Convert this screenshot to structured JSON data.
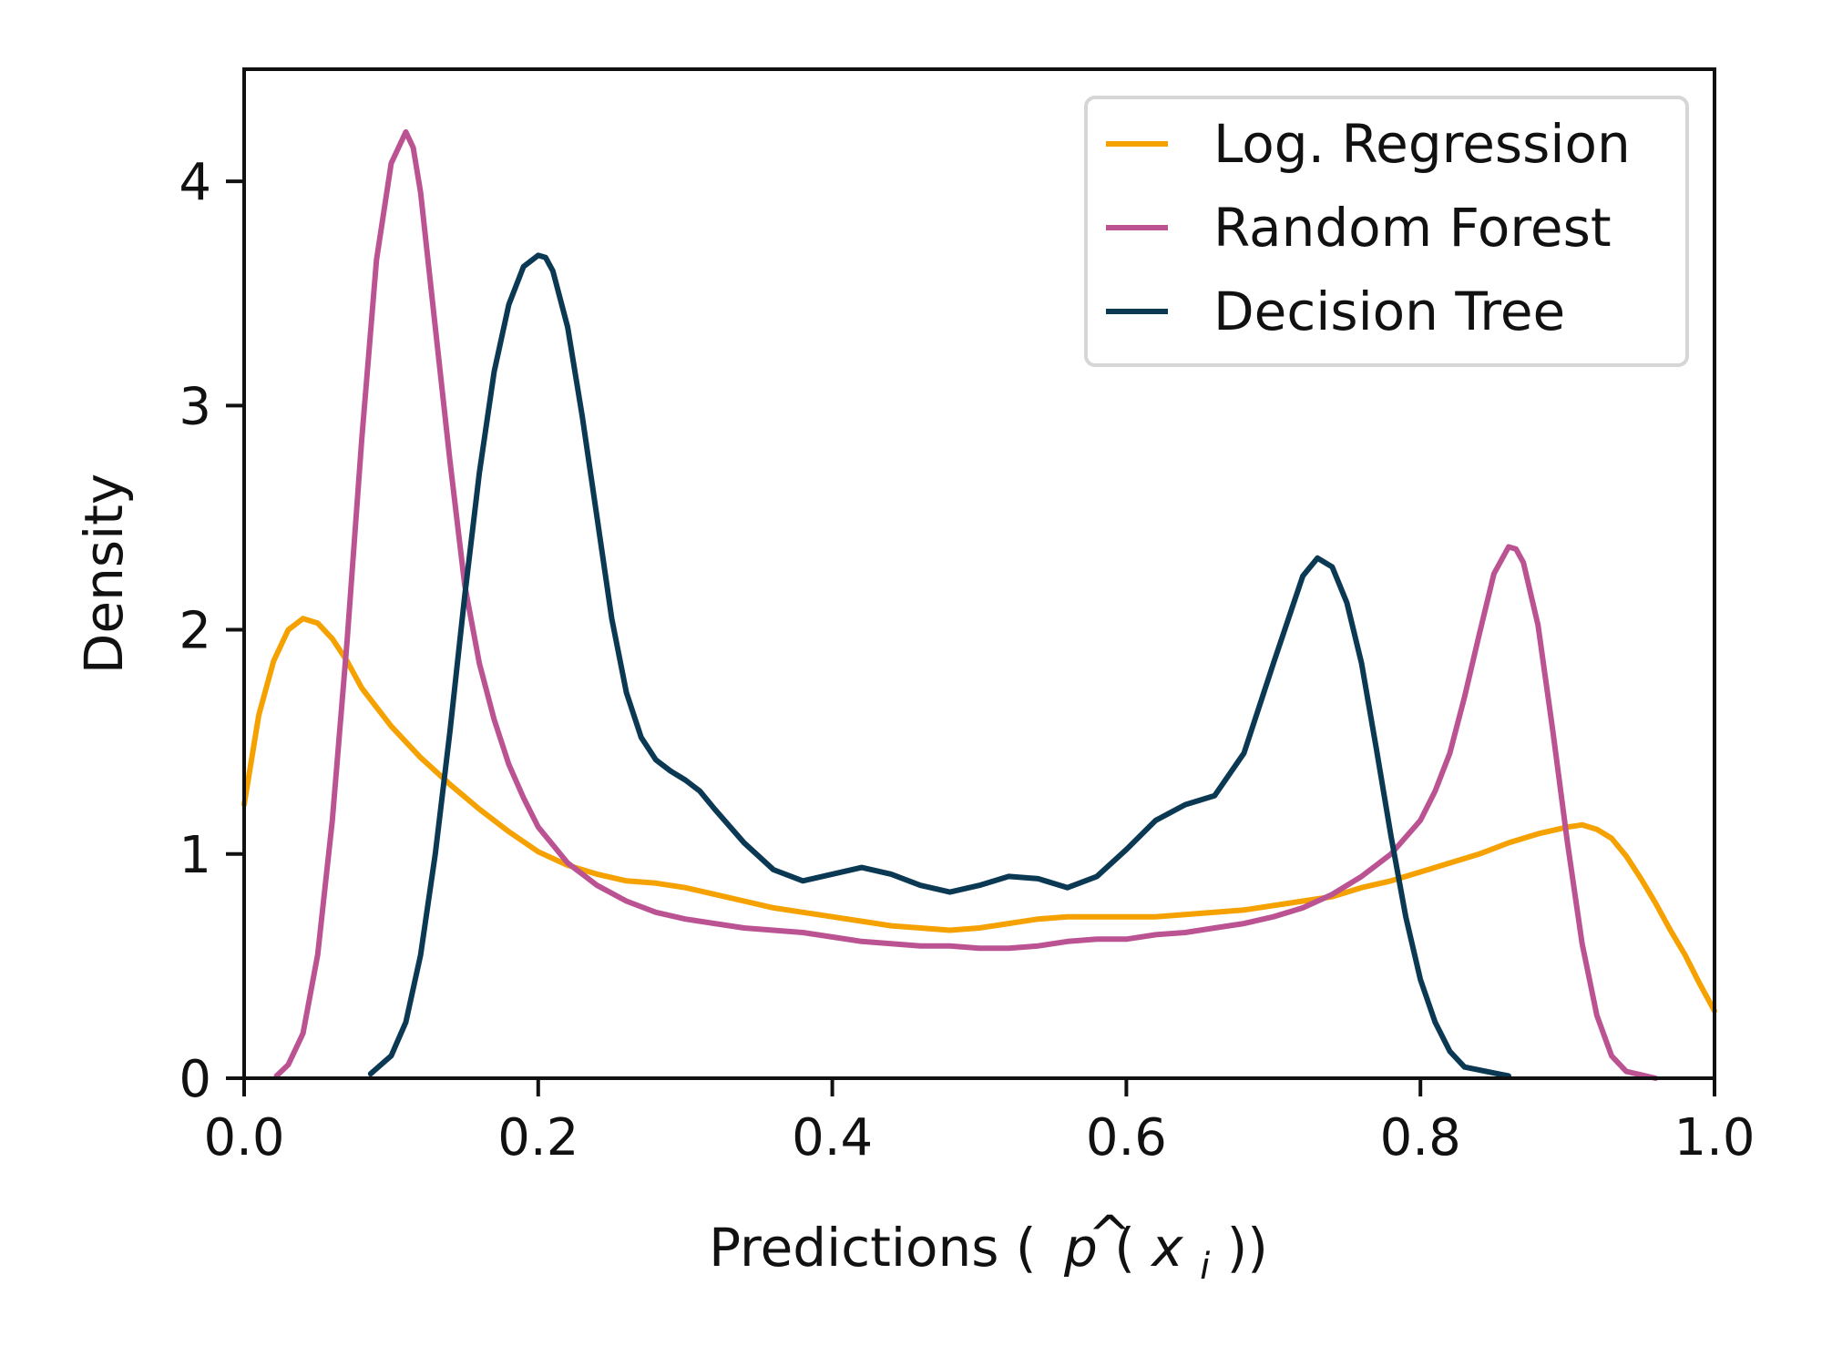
{
  "chart_data": {
    "type": "line",
    "title": "",
    "xlabel": "Predictions ( p̂(x_i) )",
    "xlabel_parts": {
      "prefix": "Predictions (",
      "p": "p",
      "hat": "^",
      "open": "(",
      "x": "x",
      "sub": "i",
      "close": "))"
    },
    "ylabel": "Density",
    "xlim": [
      0.0,
      1.0
    ],
    "ylim": [
      0.0,
      4.5
    ],
    "xticks": [
      0.0,
      0.2,
      0.4,
      0.6,
      0.8,
      1.0
    ],
    "xtick_labels": [
      "0.0",
      "0.2",
      "0.4",
      "0.6",
      "0.8",
      "1.0"
    ],
    "yticks": [
      0,
      1,
      2,
      3,
      4
    ],
    "ytick_labels": [
      "0",
      "1",
      "2",
      "3",
      "4"
    ],
    "grid": false,
    "legend_position": "top-right",
    "series": [
      {
        "name": "Log. Regression",
        "color": "#f5a100",
        "points": [
          [
            0.0,
            1.22
          ],
          [
            0.01,
            1.62
          ],
          [
            0.02,
            1.86
          ],
          [
            0.03,
            2.0
          ],
          [
            0.04,
            2.05
          ],
          [
            0.05,
            2.03
          ],
          [
            0.06,
            1.96
          ],
          [
            0.07,
            1.86
          ],
          [
            0.08,
            1.74
          ],
          [
            0.1,
            1.57
          ],
          [
            0.12,
            1.43
          ],
          [
            0.14,
            1.31
          ],
          [
            0.16,
            1.2
          ],
          [
            0.18,
            1.1
          ],
          [
            0.2,
            1.01
          ],
          [
            0.22,
            0.95
          ],
          [
            0.24,
            0.91
          ],
          [
            0.26,
            0.88
          ],
          [
            0.28,
            0.87
          ],
          [
            0.3,
            0.85
          ],
          [
            0.32,
            0.82
          ],
          [
            0.34,
            0.79
          ],
          [
            0.36,
            0.76
          ],
          [
            0.38,
            0.74
          ],
          [
            0.4,
            0.72
          ],
          [
            0.42,
            0.7
          ],
          [
            0.44,
            0.68
          ],
          [
            0.46,
            0.67
          ],
          [
            0.48,
            0.66
          ],
          [
            0.5,
            0.67
          ],
          [
            0.52,
            0.69
          ],
          [
            0.54,
            0.71
          ],
          [
            0.56,
            0.72
          ],
          [
            0.58,
            0.72
          ],
          [
            0.6,
            0.72
          ],
          [
            0.62,
            0.72
          ],
          [
            0.64,
            0.73
          ],
          [
            0.66,
            0.74
          ],
          [
            0.68,
            0.75
          ],
          [
            0.7,
            0.77
          ],
          [
            0.72,
            0.79
          ],
          [
            0.74,
            0.81
          ],
          [
            0.76,
            0.85
          ],
          [
            0.78,
            0.88
          ],
          [
            0.8,
            0.92
          ],
          [
            0.82,
            0.96
          ],
          [
            0.84,
            1.0
          ],
          [
            0.86,
            1.05
          ],
          [
            0.88,
            1.09
          ],
          [
            0.9,
            1.12
          ],
          [
            0.91,
            1.13
          ],
          [
            0.92,
            1.11
          ],
          [
            0.93,
            1.07
          ],
          [
            0.94,
            0.99
          ],
          [
            0.95,
            0.89
          ],
          [
            0.96,
            0.78
          ],
          [
            0.97,
            0.66
          ],
          [
            0.98,
            0.55
          ],
          [
            0.99,
            0.42
          ],
          [
            1.0,
            0.3
          ]
        ]
      },
      {
        "name": "Random Forest",
        "color": "#bb5393",
        "points": [
          [
            0.022,
            0.01
          ],
          [
            0.03,
            0.06
          ],
          [
            0.04,
            0.2
          ],
          [
            0.05,
            0.55
          ],
          [
            0.06,
            1.15
          ],
          [
            0.07,
            1.95
          ],
          [
            0.08,
            2.85
          ],
          [
            0.09,
            3.65
          ],
          [
            0.1,
            4.08
          ],
          [
            0.11,
            4.22
          ],
          [
            0.115,
            4.15
          ],
          [
            0.12,
            3.95
          ],
          [
            0.13,
            3.35
          ],
          [
            0.14,
            2.75
          ],
          [
            0.15,
            2.2
          ],
          [
            0.16,
            1.85
          ],
          [
            0.17,
            1.6
          ],
          [
            0.18,
            1.4
          ],
          [
            0.19,
            1.25
          ],
          [
            0.2,
            1.12
          ],
          [
            0.22,
            0.96
          ],
          [
            0.24,
            0.86
          ],
          [
            0.26,
            0.79
          ],
          [
            0.28,
            0.74
          ],
          [
            0.3,
            0.71
          ],
          [
            0.32,
            0.69
          ],
          [
            0.34,
            0.67
          ],
          [
            0.36,
            0.66
          ],
          [
            0.38,
            0.65
          ],
          [
            0.4,
            0.63
          ],
          [
            0.42,
            0.61
          ],
          [
            0.44,
            0.6
          ],
          [
            0.46,
            0.59
          ],
          [
            0.48,
            0.59
          ],
          [
            0.5,
            0.58
          ],
          [
            0.52,
            0.58
          ],
          [
            0.54,
            0.59
          ],
          [
            0.56,
            0.61
          ],
          [
            0.58,
            0.62
          ],
          [
            0.6,
            0.62
          ],
          [
            0.62,
            0.64
          ],
          [
            0.64,
            0.65
          ],
          [
            0.66,
            0.67
          ],
          [
            0.68,
            0.69
          ],
          [
            0.7,
            0.72
          ],
          [
            0.72,
            0.76
          ],
          [
            0.74,
            0.82
          ],
          [
            0.76,
            0.9
          ],
          [
            0.78,
            1.0
          ],
          [
            0.8,
            1.15
          ],
          [
            0.81,
            1.28
          ],
          [
            0.82,
            1.45
          ],
          [
            0.83,
            1.7
          ],
          [
            0.84,
            1.98
          ],
          [
            0.85,
            2.25
          ],
          [
            0.86,
            2.37
          ],
          [
            0.865,
            2.36
          ],
          [
            0.87,
            2.3
          ],
          [
            0.88,
            2.02
          ],
          [
            0.89,
            1.55
          ],
          [
            0.9,
            1.05
          ],
          [
            0.91,
            0.6
          ],
          [
            0.92,
            0.28
          ],
          [
            0.93,
            0.1
          ],
          [
            0.94,
            0.03
          ],
          [
            0.96,
            0.0
          ]
        ]
      },
      {
        "name": "Decision Tree",
        "color": "#0b3954",
        "points": [
          [
            0.086,
            0.02
          ],
          [
            0.1,
            0.1
          ],
          [
            0.11,
            0.25
          ],
          [
            0.12,
            0.55
          ],
          [
            0.13,
            1.0
          ],
          [
            0.14,
            1.55
          ],
          [
            0.15,
            2.15
          ],
          [
            0.16,
            2.7
          ],
          [
            0.17,
            3.15
          ],
          [
            0.18,
            3.45
          ],
          [
            0.19,
            3.62
          ],
          [
            0.2,
            3.67
          ],
          [
            0.205,
            3.66
          ],
          [
            0.21,
            3.6
          ],
          [
            0.22,
            3.35
          ],
          [
            0.23,
            2.95
          ],
          [
            0.24,
            2.5
          ],
          [
            0.25,
            2.05
          ],
          [
            0.26,
            1.72
          ],
          [
            0.27,
            1.52
          ],
          [
            0.28,
            1.42
          ],
          [
            0.29,
            1.37
          ],
          [
            0.3,
            1.33
          ],
          [
            0.31,
            1.28
          ],
          [
            0.32,
            1.2
          ],
          [
            0.34,
            1.05
          ],
          [
            0.36,
            0.93
          ],
          [
            0.38,
            0.88
          ],
          [
            0.4,
            0.91
          ],
          [
            0.42,
            0.94
          ],
          [
            0.44,
            0.91
          ],
          [
            0.46,
            0.86
          ],
          [
            0.48,
            0.83
          ],
          [
            0.5,
            0.86
          ],
          [
            0.52,
            0.9
          ],
          [
            0.54,
            0.89
          ],
          [
            0.56,
            0.85
          ],
          [
            0.58,
            0.9
          ],
          [
            0.6,
            1.02
          ],
          [
            0.62,
            1.15
          ],
          [
            0.64,
            1.22
          ],
          [
            0.66,
            1.26
          ],
          [
            0.68,
            1.45
          ],
          [
            0.7,
            1.85
          ],
          [
            0.72,
            2.24
          ],
          [
            0.73,
            2.32
          ],
          [
            0.74,
            2.28
          ],
          [
            0.75,
            2.12
          ],
          [
            0.76,
            1.85
          ],
          [
            0.77,
            1.47
          ],
          [
            0.78,
            1.08
          ],
          [
            0.79,
            0.72
          ],
          [
            0.8,
            0.44
          ],
          [
            0.81,
            0.25
          ],
          [
            0.82,
            0.12
          ],
          [
            0.83,
            0.05
          ],
          [
            0.86,
            0.01
          ]
        ]
      }
    ]
  }
}
